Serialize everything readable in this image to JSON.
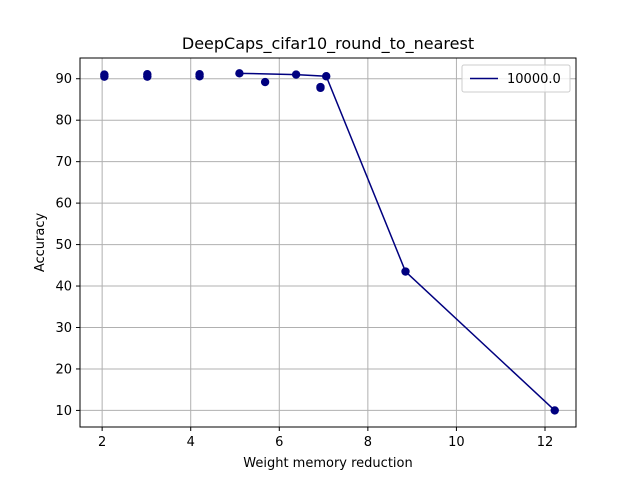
{
  "chart_data": {
    "type": "scatter",
    "title": "DeepCaps_cifar10_round_to_nearest",
    "xlabel": "Weight memory reduction",
    "ylabel": "Accuracy",
    "xlim": [
      1.5,
      12.7
    ],
    "ylim": [
      6,
      95
    ],
    "xticks": [
      2,
      4,
      6,
      8,
      10,
      12
    ],
    "yticks": [
      10,
      20,
      30,
      40,
      50,
      60,
      70,
      80,
      90
    ],
    "grid": true,
    "legend_position": "top-right",
    "points": [
      {
        "x": 2.05,
        "y": 91.0
      },
      {
        "x": 2.05,
        "y": 90.5
      },
      {
        "x": 3.02,
        "y": 91.1
      },
      {
        "x": 3.02,
        "y": 90.5
      },
      {
        "x": 4.2,
        "y": 91.1
      },
      {
        "x": 4.2,
        "y": 90.6
      },
      {
        "x": 5.1,
        "y": 91.3
      },
      {
        "x": 5.68,
        "y": 89.2
      },
      {
        "x": 6.38,
        "y": 91.0
      },
      {
        "x": 6.93,
        "y": 88.0
      },
      {
        "x": 6.93,
        "y": 87.8
      },
      {
        "x": 7.06,
        "y": 90.6
      },
      {
        "x": 8.85,
        "y": 43.5
      },
      {
        "x": 12.22,
        "y": 10.0
      }
    ],
    "series": [
      {
        "name": "10000.0",
        "color": "#00007f",
        "x": [
          5.1,
          6.38,
          7.06,
          8.85,
          12.22
        ],
        "y": [
          91.3,
          91.0,
          90.6,
          43.5,
          10.0
        ]
      }
    ],
    "marker_color": "#00007f",
    "grid_color": "#b0b0b0"
  }
}
